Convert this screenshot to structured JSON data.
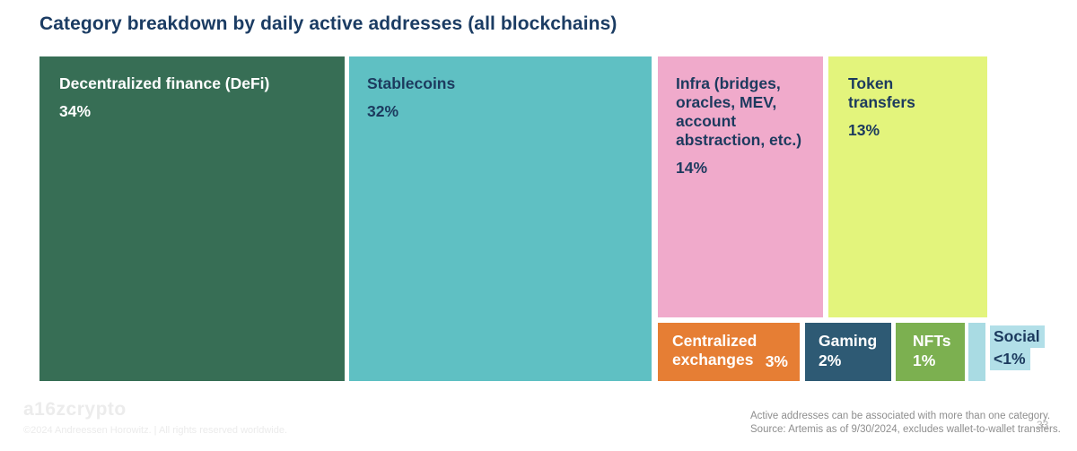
{
  "page": {
    "page_number": "33"
  },
  "chart_data": {
    "type": "treemap",
    "title": "Category breakdown by daily active addresses (all blockchains)",
    "legend_position": "none",
    "categories": [
      "Decentralized finance (DeFi)",
      "Stablecoins",
      "Infra (bridges, oracles, MEV, account abstraction, etc.)",
      "Token transfers",
      "Centralized exchanges",
      "Gaming",
      "NFTs",
      "Social"
    ],
    "values": [
      34,
      32,
      14,
      13,
      3,
      2,
      1,
      0.5
    ],
    "value_labels": [
      "34%",
      "32%",
      "14%",
      "13%",
      "3%",
      "2%",
      "1%",
      "<1%"
    ],
    "blocks": [
      {
        "label": "Decentralized finance (DeFi)",
        "value": 34,
        "value_label": "34%",
        "color": "#376e55"
      },
      {
        "label": "Stablecoins",
        "value": 32,
        "value_label": "32%",
        "color": "#5fc0c3"
      },
      {
        "label": "Infra (bridges,\noracles, MEV,\naccount\nabstraction, etc.)",
        "value": 14,
        "value_label": "14%",
        "color": "#f0aacb"
      },
      {
        "label": "Token\ntransfers",
        "value": 13,
        "value_label": "13%",
        "color": "#e3f47c"
      },
      {
        "label": "Centralized\nexchanges",
        "value": 3,
        "value_label": "3%",
        "color": "#e67e34"
      },
      {
        "label": "Gaming",
        "value": 2,
        "value_label": "2%",
        "color": "#2e5a74"
      },
      {
        "label": "NFTs",
        "value": 1,
        "value_label": "1%",
        "color": "#7cb050"
      },
      {
        "label": "Social",
        "value": 0.5,
        "value_label": "<1%",
        "color": "#a9dbe3",
        "label_highlight_color": "#b2dfe8"
      }
    ],
    "text_colors": {
      "on_dark": "#ffffff",
      "on_light": "#1c3a5e"
    },
    "title_color": "#1b3c63"
  },
  "footer": {
    "logo": "a16zcrypto",
    "copyright": "©2024 Andreessen Horowitz.  |  All rights reserved worldwide.",
    "note_line1": "Active addresses can be associated with more than one category.",
    "note_line2": "Source: Artemis as of 9/30/2024, excludes wallet-to-wallet transfers."
  }
}
